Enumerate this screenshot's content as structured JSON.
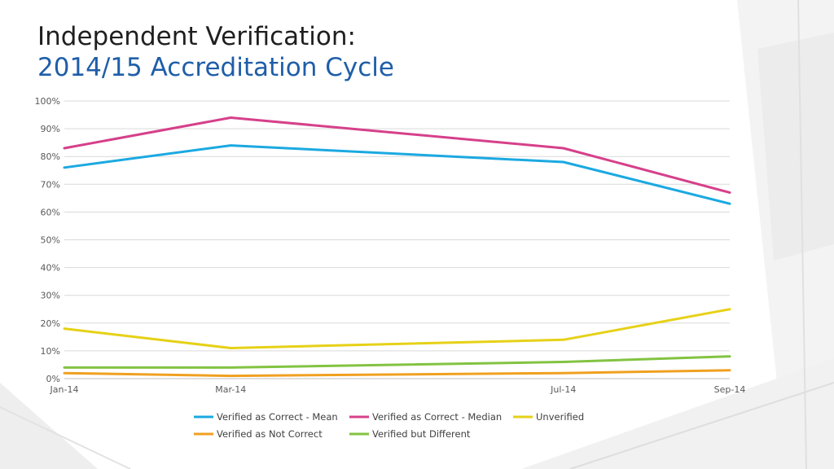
{
  "title": {
    "line1": "Independent Verification:",
    "line2": "2014/15 Accreditation Cycle"
  },
  "colors": {
    "title_primary": "#1f1f1f",
    "title_accent": "#1f5ea8",
    "gridline": "#d9d9d9",
    "axis": "#bfbfbf"
  },
  "chart_data": {
    "type": "line",
    "categories": [
      "Jan-14",
      "Mar-14",
      "Jul-14",
      "Sep-14"
    ],
    "x_dates": [
      "2014-01",
      "2014-03",
      "2014-07",
      "2014-09"
    ],
    "ylim": [
      0,
      100
    ],
    "y_ticks": [
      "0%",
      "10%",
      "20%",
      "30%",
      "40%",
      "50%",
      "60%",
      "70%",
      "80%",
      "90%",
      "100%"
    ],
    "y_unit": "%",
    "grid": true,
    "legend_position": "bottom",
    "series": [
      {
        "name": "Verified as Correct - Mean",
        "color": "#1ba9e1",
        "values": [
          76,
          84,
          78,
          63
        ]
      },
      {
        "name": "Verified as Correct - Median",
        "color": "#d6408a",
        "values": [
          83,
          94,
          83,
          67
        ]
      },
      {
        "name": "Unverified",
        "color": "#e6d117",
        "values": [
          18,
          11,
          14,
          25
        ]
      },
      {
        "name": "Verified as Not Correct",
        "color": "#f0a020",
        "values": [
          2,
          1,
          2,
          3
        ]
      },
      {
        "name": "Verified but Different",
        "color": "#82c341",
        "values": [
          4,
          4,
          6,
          8
        ]
      }
    ]
  }
}
